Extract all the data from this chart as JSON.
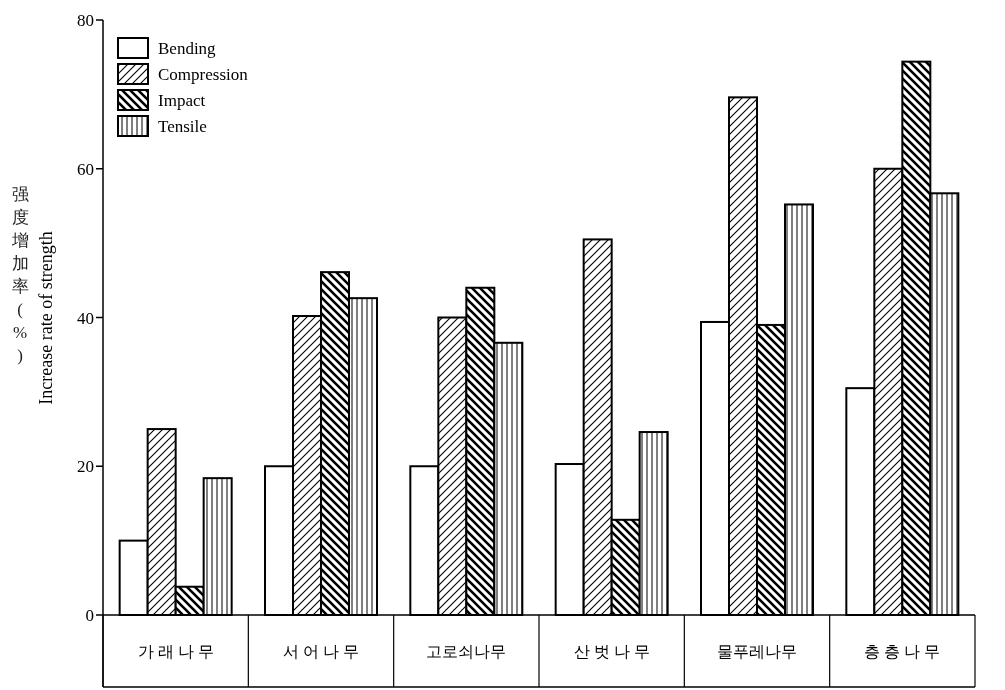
{
  "chart_data": {
    "type": "bar",
    "ylabel": "强度增加率(%)\nIncrease rate of strength",
    "categories": [
      "가 래 나 무",
      "서 어 나 무",
      "고로쇠나무",
      "산 벗 나 무",
      "물푸레나무",
      "층 층 나 무"
    ],
    "series": [
      {
        "name": "Bending",
        "color": "#ffffff",
        "values": [
          10,
          20,
          20,
          20.3,
          39.4,
          30.5
        ]
      },
      {
        "name": "Compression",
        "color": "#000000",
        "values": [
          25,
          40.2,
          40,
          50.5,
          69.6,
          60
        ]
      },
      {
        "name": "Impact",
        "color": "#000000",
        "values": [
          3.8,
          46.1,
          44,
          12.8,
          39,
          74.4
        ]
      },
      {
        "name": "Tensile",
        "color": "#000000",
        "values": [
          18.4,
          42.6,
          36.6,
          24.6,
          55.2,
          56.7
        ]
      }
    ],
    "ylim": [
      0,
      80
    ],
    "yticks": [
      0,
      20,
      40,
      60,
      80
    ],
    "legend": "top left",
    "grid": false
  }
}
